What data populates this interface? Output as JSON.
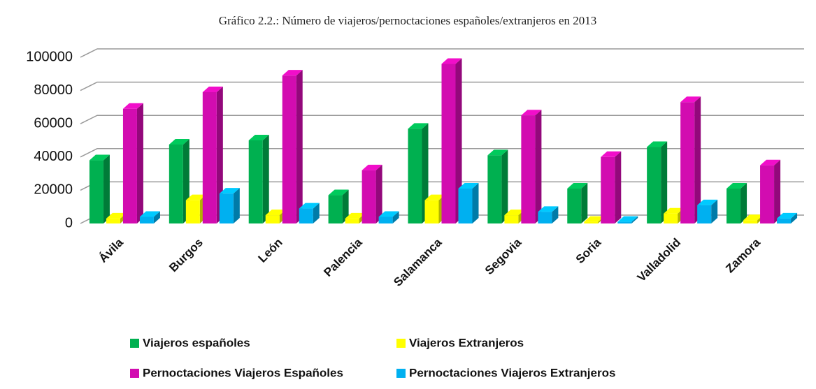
{
  "chart_data": {
    "type": "bar3d",
    "title": "Gráfico 2.2.: Número de viajeros/pernoctaciones españoles/extranjeros en 2013",
    "categories": [
      "Ávila",
      "Burgos",
      "León",
      "Palencia",
      "Salamanca",
      "Segovia",
      "Soria",
      "Valladolid",
      "Zamora"
    ],
    "series": [
      {
        "name": "Viajeros españoles",
        "color": "#00b050",
        "values": [
          38000,
          47500,
          50000,
          17000,
          57000,
          41000,
          21000,
          46000,
          21000
        ]
      },
      {
        "name": "Viajeros Extranjeros",
        "color": "#ffff00",
        "values": [
          3000,
          14000,
          5000,
          3000,
          14000,
          5000,
          1000,
          6000,
          2000
        ]
      },
      {
        "name": "Pernoctaciones Viajeros Españoles",
        "color": "#d20cb0",
        "values": [
          69000,
          79000,
          89000,
          32000,
          96000,
          65000,
          40000,
          73000,
          35000
        ]
      },
      {
        "name": "Pernoctaciones Viajeros Extranjeros",
        "color": "#00b0f0",
        "values": [
          4000,
          18000,
          9000,
          4000,
          21000,
          7000,
          1000,
          11000,
          3000
        ]
      }
    ],
    "ylim": [
      0,
      100000
    ],
    "yticks": [
      0,
      20000,
      40000,
      60000,
      80000,
      100000
    ],
    "grid": true,
    "legend": "bottom"
  }
}
